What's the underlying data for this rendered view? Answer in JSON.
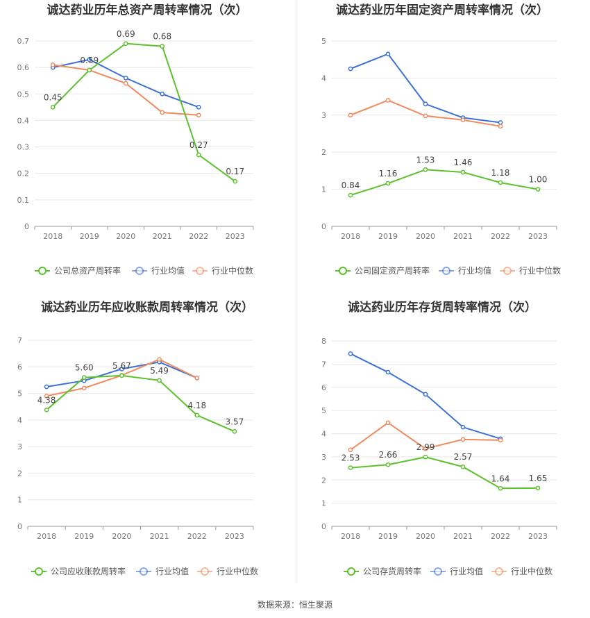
{
  "source": "数据来源：恒生聚源",
  "colors": {
    "company": "#5cc12c",
    "avg": "#3b71d6",
    "median": "#f08a5d",
    "grid": "#e8e8e8",
    "axis": "#999999"
  },
  "chart_data": [
    {
      "type": "line",
      "title": "诚达药业历年总资产周转率情况（次）",
      "categories": [
        "2018",
        "2019",
        "2020",
        "2021",
        "2022",
        "2023"
      ],
      "ylim": [
        0,
        0.7
      ],
      "yticks": [
        "0",
        "0.1",
        "0.2",
        "0.3",
        "0.4",
        "0.5",
        "0.6",
        "0.7"
      ],
      "series": [
        {
          "name": "公司总资产周转率",
          "values": [
            0.45,
            0.59,
            0.69,
            0.68,
            0.27,
            0.17
          ],
          "labels": [
            "0.45",
            "0.59",
            "0.69",
            "0.68",
            "0.27",
            "0.17"
          ]
        },
        {
          "name": "行业均值",
          "values": [
            0.6,
            0.63,
            0.56,
            0.5,
            0.45,
            null
          ]
        },
        {
          "name": "行业中位数",
          "values": [
            0.61,
            0.59,
            0.54,
            0.43,
            0.42,
            null
          ]
        }
      ]
    },
    {
      "type": "line",
      "title": "诚达药业历年固定资产周转率情况（次）",
      "categories": [
        "2018",
        "2019",
        "2020",
        "2021",
        "2022",
        "2023"
      ],
      "ylim": [
        0,
        5
      ],
      "yticks": [
        "0",
        "1",
        "2",
        "3",
        "4",
        "5"
      ],
      "series": [
        {
          "name": "公司固定资产周转率",
          "values": [
            0.84,
            1.16,
            1.53,
            1.46,
            1.18,
            1.0
          ],
          "labels": [
            "0.84",
            "1.16",
            "1.53",
            "1.46",
            "1.18",
            "1.00"
          ]
        },
        {
          "name": "行业均值",
          "values": [
            4.25,
            4.65,
            3.3,
            2.93,
            2.8,
            null
          ]
        },
        {
          "name": "行业中位数",
          "values": [
            3.0,
            3.4,
            2.98,
            2.87,
            2.7,
            null
          ]
        }
      ]
    },
    {
      "type": "line",
      "title": "诚达药业历年应收账款周转率情况（次）",
      "categories": [
        "2018",
        "2019",
        "2020",
        "2021",
        "2022",
        "2023"
      ],
      "ylim": [
        0,
        7
      ],
      "yticks": [
        "0",
        "1",
        "2",
        "3",
        "4",
        "5",
        "6",
        "7"
      ],
      "series": [
        {
          "name": "公司应收账款周转率",
          "values": [
            4.38,
            5.6,
            5.67,
            5.49,
            4.18,
            3.57
          ],
          "labels": [
            "4.38",
            "5.60",
            "5.67",
            "5.49",
            "4.18",
            "3.57"
          ]
        },
        {
          "name": "行业均值",
          "values": [
            5.25,
            5.48,
            5.92,
            6.18,
            5.58,
            null
          ]
        },
        {
          "name": "行业中位数",
          "values": [
            4.9,
            5.2,
            5.68,
            6.28,
            5.58,
            null
          ]
        }
      ]
    },
    {
      "type": "line",
      "title": "诚达药业历年存货周转率情况（次）",
      "categories": [
        "2018",
        "2019",
        "2020",
        "2021",
        "2022",
        "2023"
      ],
      "ylim": [
        0,
        8
      ],
      "yticks": [
        "0",
        "1",
        "2",
        "3",
        "4",
        "5",
        "6",
        "7",
        "8"
      ],
      "series": [
        {
          "name": "公司存货周转率",
          "values": [
            2.53,
            2.66,
            2.99,
            2.57,
            1.64,
            1.65
          ],
          "labels": [
            "2.53",
            "2.66",
            "2.99",
            "2.57",
            "1.64",
            "1.65"
          ]
        },
        {
          "name": "行业均值",
          "values": [
            7.45,
            6.65,
            5.7,
            4.28,
            3.78,
            null
          ]
        },
        {
          "name": "行业中位数",
          "values": [
            3.3,
            4.47,
            3.35,
            3.75,
            3.72,
            null
          ]
        }
      ]
    }
  ]
}
